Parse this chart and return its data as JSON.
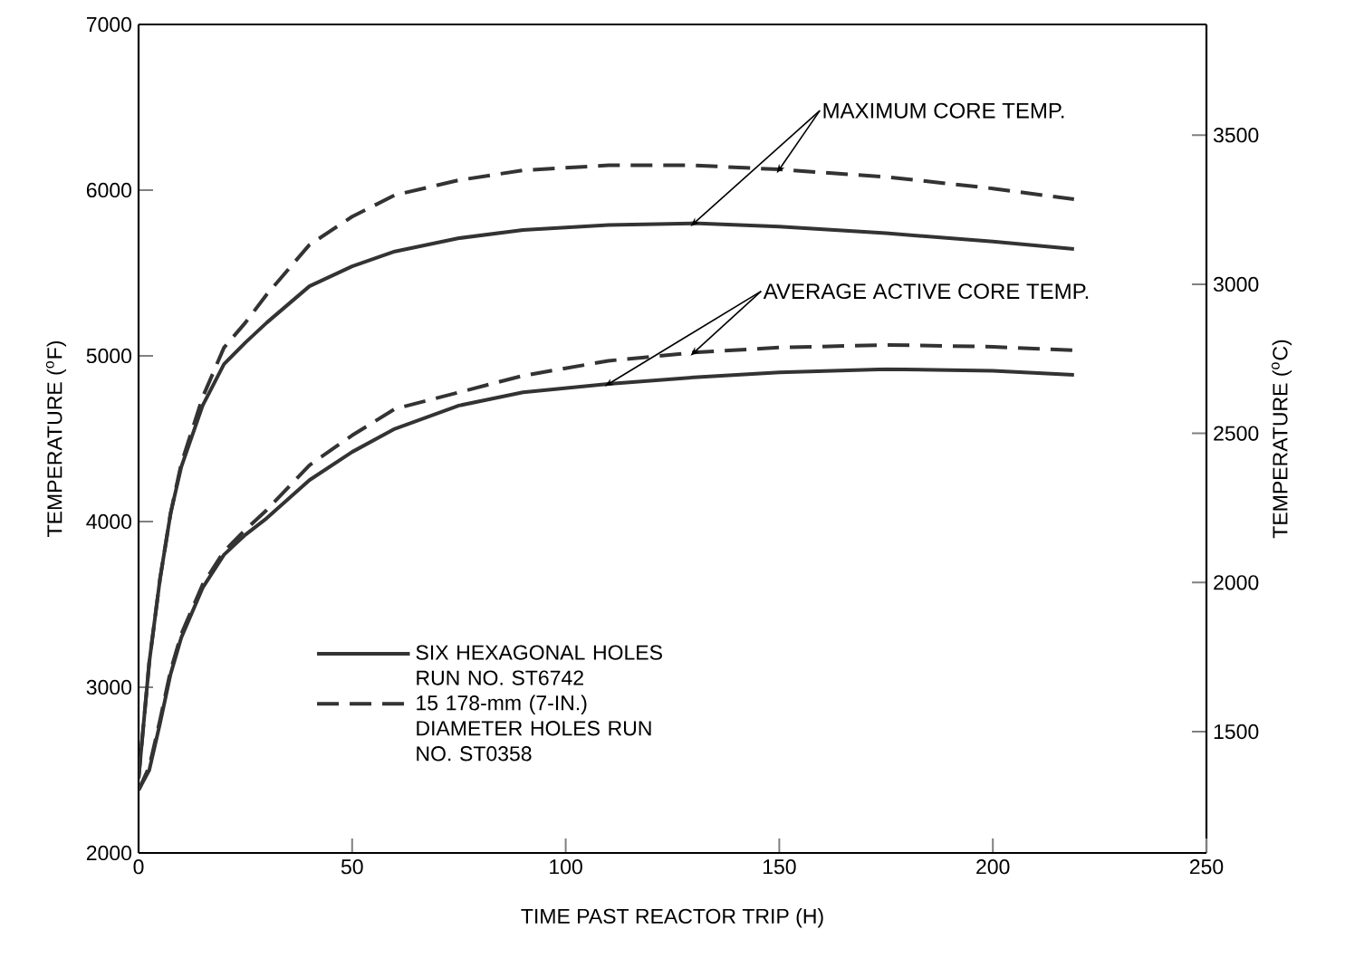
{
  "chart_data": {
    "type": "line",
    "xlabel": "TIME PAST REACTOR TRIP (H)",
    "ylabel": "TEMPERATURE ($^{o}$F)",
    "y2label": "TEMPERATURE ($^{o}$C)",
    "x": [
      0,
      2.5,
      5,
      7.5,
      10,
      15,
      20,
      25,
      30,
      40,
      50,
      60,
      75,
      90,
      110,
      130,
      150,
      175,
      200,
      219
    ],
    "series": [
      {
        "name": "SIX HEXAGONAL HOLES RUN NO. ST6742",
        "color": "#333333",
        "line_style": "solid",
        "values": [
          2450,
          3150,
          3650,
          4050,
          4330,
          4700,
          4950,
          5080,
          5200,
          5420,
          5540,
          5630,
          5710,
          5760,
          5790,
          5800,
          5780,
          5740,
          5690,
          5645
        ]
      },
      {
        "name": "15 178-mm (7-IN.) DIAMETER HOLES RUN NO. ST0358",
        "color": "#333333",
        "line_style": "dashed",
        "values": [
          2450,
          3150,
          3650,
          4050,
          4350,
          4750,
          5050,
          5200,
          5370,
          5670,
          5840,
          5970,
          6060,
          6120,
          6150,
          6150,
          6125,
          6080,
          6010,
          5945
        ]
      },
      {
        "color": "#333333",
        "line_style": "solid",
        "values": [
          2380,
          2500,
          2780,
          3080,
          3300,
          3600,
          3800,
          3920,
          4020,
          4250,
          4420,
          4560,
          4700,
          4780,
          4830,
          4870,
          4900,
          4920,
          4910,
          4885
        ]
      },
      {
        "color": "#333333",
        "line_style": "dashed",
        "values": [
          2380,
          2520,
          2800,
          3100,
          3320,
          3620,
          3820,
          3950,
          4070,
          4340,
          4520,
          4680,
          4780,
          4880,
          4970,
          5020,
          5050,
          5066,
          5055,
          5033
        ]
      }
    ],
    "xlim": [
      0,
      250
    ],
    "xticks": [
      0,
      50,
      100,
      150,
      200,
      250
    ],
    "ylim": [
      2000,
      7000
    ],
    "yticks": [
      2000,
      3000,
      4000,
      5000,
      6000,
      7000
    ],
    "y2lim": [
      1093.3,
      3871.1
    ],
    "y2ticks": [
      1500,
      2000,
      2500,
      3000,
      3500
    ],
    "annotations": [
      {
        "text": "MAXIMUM CORE TEMP.",
        "x": 130,
        "y": 5800
      },
      {
        "text": "AVERAGE ACTIVE CORE TEMP.",
        "x": 110,
        "y": 4830
      }
    ],
    "grid": false,
    "legend": "bottom left"
  }
}
